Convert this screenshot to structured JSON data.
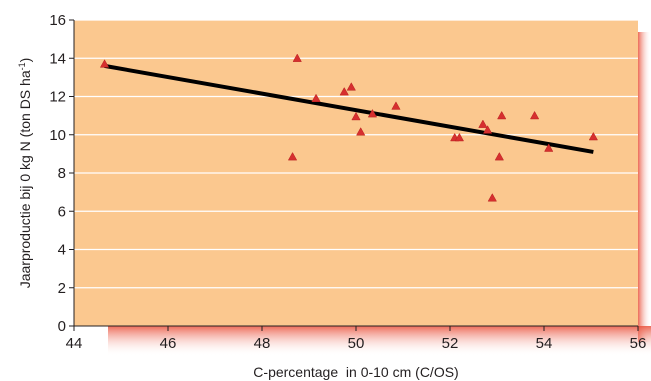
{
  "chart_data": {
    "type": "scatter",
    "title": "",
    "xlabel": "C-percentage  in 0-10 cm (C/OS)",
    "ylabel": "Jaarproductie bij 0 kg N (ton DS ha",
    "ylabel_superscript": "-1",
    "ylabel_suffix": ")",
    "xlim": [
      44,
      56
    ],
    "ylim": [
      0,
      16
    ],
    "x_ticks": [
      44,
      46,
      48,
      50,
      52,
      54,
      56
    ],
    "y_ticks": [
      0,
      2,
      4,
      6,
      8,
      10,
      12,
      14,
      16
    ],
    "x_tick_labels": [
      "44",
      "46",
      "48",
      "50",
      "52",
      "54",
      "56"
    ],
    "y_tick_labels": [
      "0",
      "2",
      "4",
      "6",
      "8",
      "10",
      "12",
      "14",
      "16"
    ],
    "grid": "horizontal",
    "series": [
      {
        "marker": "triangle",
        "color": "#d62f2f",
        "points": [
          {
            "x": 44.65,
            "y": 13.7
          },
          {
            "x": 48.65,
            "y": 8.85
          },
          {
            "x": 48.75,
            "y": 14.0
          },
          {
            "x": 49.15,
            "y": 11.9
          },
          {
            "x": 49.75,
            "y": 12.25
          },
          {
            "x": 49.9,
            "y": 12.5
          },
          {
            "x": 50.0,
            "y": 10.95
          },
          {
            "x": 50.1,
            "y": 10.15
          },
          {
            "x": 50.35,
            "y": 11.1
          },
          {
            "x": 50.85,
            "y": 11.5
          },
          {
            "x": 52.1,
            "y": 9.85
          },
          {
            "x": 52.2,
            "y": 9.85
          },
          {
            "x": 52.7,
            "y": 10.55
          },
          {
            "x": 52.8,
            "y": 10.25
          },
          {
            "x": 52.9,
            "y": 6.7
          },
          {
            "x": 53.05,
            "y": 8.85
          },
          {
            "x": 53.1,
            "y": 11.0
          },
          {
            "x": 53.8,
            "y": 11.0
          },
          {
            "x": 54.1,
            "y": 9.3
          },
          {
            "x": 55.05,
            "y": 9.9
          }
        ]
      }
    ],
    "trendline": {
      "x1": 44.65,
      "y1": 13.6,
      "x2": 55.05,
      "y2": 9.1,
      "color": "#000000"
    },
    "colors": {
      "plot_background": "#fbc88f",
      "gridline": "#ffffff",
      "shadow": "#e9503a",
      "marker": "#d62f2f",
      "text": "#231f20"
    }
  }
}
